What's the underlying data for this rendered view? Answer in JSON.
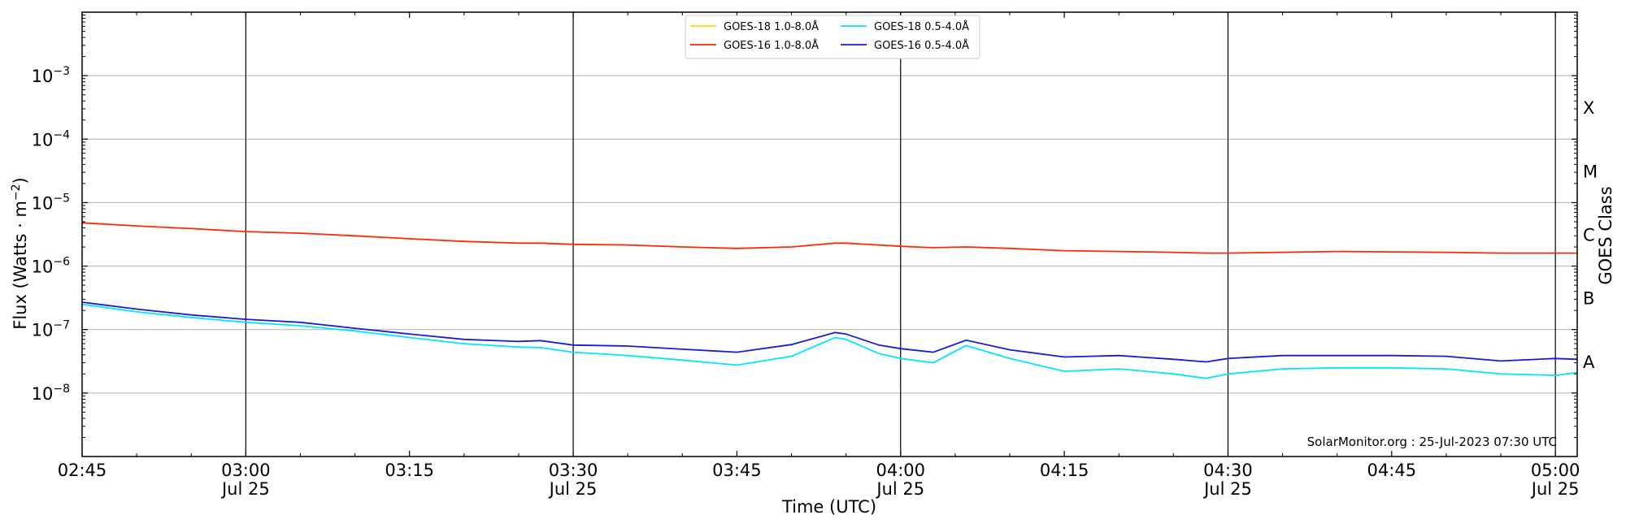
{
  "chart_data": {
    "type": "line",
    "title": "",
    "xlabel": "Time (UTC)",
    "ylabel_main": "Flux (Watts · m",
    "ylabel_sup": "−2",
    "ylabel_close": ")",
    "ylabel_right": "GOES Class",
    "yscale": "log",
    "ylim": [
      1e-09,
      0.01
    ],
    "xlim": [
      "02:45",
      "05:02"
    ],
    "x_ticks": [
      {
        "t": "02:45",
        "time": "02:45",
        "date": ""
      },
      {
        "t": "03:00",
        "time": "03:00",
        "date": "Jul 25"
      },
      {
        "t": "03:15",
        "time": "03:15",
        "date": ""
      },
      {
        "t": "03:30",
        "time": "03:30",
        "date": "Jul 25"
      },
      {
        "t": "03:45",
        "time": "03:45",
        "date": ""
      },
      {
        "t": "04:00",
        "time": "04:00",
        "date": "Jul 25"
      },
      {
        "t": "04:15",
        "time": "04:15",
        "date": ""
      },
      {
        "t": "04:30",
        "time": "04:30",
        "date": "Jul 25"
      },
      {
        "t": "04:45",
        "time": "04:45",
        "date": ""
      },
      {
        "t": "05:00",
        "time": "05:00",
        "date": "Jul 25"
      }
    ],
    "y_ticks": [
      {
        "exp": -3,
        "base": "10",
        "sup": "−3"
      },
      {
        "exp": -4,
        "base": "10",
        "sup": "−4"
      },
      {
        "exp": -5,
        "base": "10",
        "sup": "−5"
      },
      {
        "exp": -6,
        "base": "10",
        "sup": "−6"
      },
      {
        "exp": -7,
        "base": "10",
        "sup": "−7"
      },
      {
        "exp": -8,
        "base": "10",
        "sup": "−8"
      }
    ],
    "vertical_lines": [
      "03:00",
      "03:30",
      "04:00",
      "04:30",
      "05:00"
    ],
    "goes_classes": [
      {
        "label": "X",
        "exp": -3.5
      },
      {
        "label": "M",
        "exp": -4.5
      },
      {
        "label": "C",
        "exp": -5.5
      },
      {
        "label": "B",
        "exp": -6.5
      },
      {
        "label": "A",
        "exp": -7.5
      }
    ],
    "grid": "horizontal",
    "legend_position": "top-center",
    "watermark": "SolarMonitor.org : 25-Jul-2023 07:30 UTC",
    "series": [
      {
        "name": "GOES-18 1.0-8.0Å",
        "color": "#ffd700",
        "x": [],
        "y": []
      },
      {
        "name": "GOES-16 1.0-8.0Å",
        "color": "#ff2a00",
        "x": [
          "02:45",
          "02:50",
          "02:55",
          "03:00",
          "03:05",
          "03:10",
          "03:15",
          "03:20",
          "03:25",
          "03:27",
          "03:30",
          "03:35",
          "03:40",
          "03:45",
          "03:50",
          "03:54",
          "03:55",
          "03:58",
          "04:00",
          "04:03",
          "04:06",
          "04:10",
          "04:15",
          "04:20",
          "04:25",
          "04:28",
          "04:30",
          "04:40",
          "04:50",
          "04:55",
          "05:02"
        ],
        "y": [
          4.8e-06,
          4.3e-06,
          3.9e-06,
          3.5e-06,
          3.3e-06,
          3e-06,
          2.7e-06,
          2.45e-06,
          2.3e-06,
          2.3e-06,
          2.2e-06,
          2.15e-06,
          2e-06,
          1.9e-06,
          2e-06,
          2.3e-06,
          2.3e-06,
          2.15e-06,
          2.05e-06,
          1.95e-06,
          2e-06,
          1.9e-06,
          1.75e-06,
          1.7e-06,
          1.65e-06,
          1.6e-06,
          1.6e-06,
          1.7e-06,
          1.65e-06,
          1.6e-06,
          1.6e-06
        ]
      },
      {
        "name": "GOES-18 0.5-4.0Å",
        "color": "#00e5ff",
        "x": [
          "02:45",
          "02:50",
          "02:55",
          "03:00",
          "03:05",
          "03:10",
          "03:15",
          "03:20",
          "03:25",
          "03:27",
          "03:30",
          "03:35",
          "03:40",
          "03:45",
          "03:50",
          "03:54",
          "03:55",
          "03:58",
          "04:00",
          "04:03",
          "04:06",
          "04:10",
          "04:15",
          "04:20",
          "04:25",
          "04:28",
          "04:30",
          "04:35",
          "04:40",
          "04:45",
          "04:50",
          "04:55",
          "05:00",
          "05:02"
        ],
        "y": [
          2.5e-07,
          1.9e-07,
          1.55e-07,
          1.3e-07,
          1.15e-07,
          9.5e-08,
          7.5e-08,
          6e-08,
          5.3e-08,
          5.2e-08,
          4.4e-08,
          3.9e-08,
          3.3e-08,
          2.75e-08,
          3.8e-08,
          7.5e-08,
          7e-08,
          4.2e-08,
          3.5e-08,
          3e-08,
          5.6e-08,
          3.5e-08,
          2.2e-08,
          2.4e-08,
          2e-08,
          1.7e-08,
          2e-08,
          2.4e-08,
          2.5e-08,
          2.5e-08,
          2.4e-08,
          2e-08,
          1.9e-08,
          2.1e-08
        ]
      },
      {
        "name": "GOES-16 0.5-4.0Å",
        "color": "#1a1ad9",
        "x": [
          "02:45",
          "02:50",
          "02:55",
          "03:00",
          "03:05",
          "03:10",
          "03:15",
          "03:20",
          "03:25",
          "03:27",
          "03:30",
          "03:35",
          "03:40",
          "03:45",
          "03:50",
          "03:54",
          "03:55",
          "03:58",
          "04:00",
          "04:03",
          "04:06",
          "04:10",
          "04:15",
          "04:20",
          "04:25",
          "04:28",
          "04:30",
          "04:35",
          "04:40",
          "04:45",
          "04:50",
          "04:55",
          "05:00",
          "05:02"
        ],
        "y": [
          2.7e-07,
          2.1e-07,
          1.7e-07,
          1.45e-07,
          1.3e-07,
          1.05e-07,
          8.5e-08,
          7e-08,
          6.5e-08,
          6.7e-08,
          5.7e-08,
          5.5e-08,
          4.9e-08,
          4.4e-08,
          5.8e-08,
          9e-08,
          8.5e-08,
          5.7e-08,
          5e-08,
          4.4e-08,
          6.8e-08,
          4.8e-08,
          3.7e-08,
          3.9e-08,
          3.4e-08,
          3.1e-08,
          3.5e-08,
          3.9e-08,
          3.9e-08,
          3.9e-08,
          3.8e-08,
          3.2e-08,
          3.5e-08,
          3.4e-08
        ]
      }
    ]
  }
}
